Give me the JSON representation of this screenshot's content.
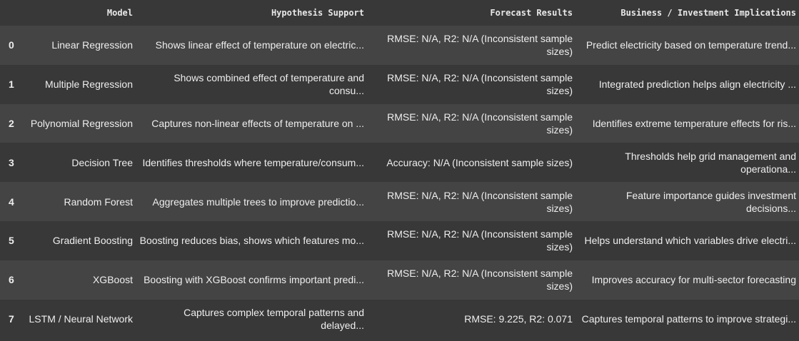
{
  "table": {
    "columns": [
      "",
      "Model",
      "Hypothesis Support",
      "Forecast Results",
      "Business / Investment Implications"
    ],
    "rows": [
      {
        "index": "0",
        "model": "Linear Regression",
        "hypothesis": "Shows linear effect of temperature on electric...",
        "forecast": "RMSE: N/A, R2: N/A (Inconsistent sample sizes)",
        "business": "Predict electricity based on temperature trend..."
      },
      {
        "index": "1",
        "model": "Multiple Regression",
        "hypothesis": "Shows combined effect of temperature and consu...",
        "forecast": "RMSE: N/A, R2: N/A (Inconsistent sample sizes)",
        "business": "Integrated prediction helps align electricity ..."
      },
      {
        "index": "2",
        "model": "Polynomial Regression",
        "hypothesis": "Captures non-linear effects of temperature on ...",
        "forecast": "RMSE: N/A, R2: N/A (Inconsistent sample sizes)",
        "business": "Identifies extreme temperature effects for ris..."
      },
      {
        "index": "3",
        "model": "Decision Tree",
        "hypothesis": "Identifies thresholds where temperature/consum...",
        "forecast": "Accuracy: N/A (Inconsistent sample sizes)",
        "business": "Thresholds help grid management and operationa..."
      },
      {
        "index": "4",
        "model": "Random Forest",
        "hypothesis": "Aggregates multiple trees to improve predictio...",
        "forecast": "RMSE: N/A, R2: N/A (Inconsistent sample sizes)",
        "business": "Feature importance guides investment decisions..."
      },
      {
        "index": "5",
        "model": "Gradient Boosting",
        "hypothesis": "Boosting reduces bias, shows which features mo...",
        "forecast": "RMSE: N/A, R2: N/A (Inconsistent sample sizes)",
        "business": "Helps understand which variables drive electri..."
      },
      {
        "index": "6",
        "model": "XGBoost",
        "hypothesis": "Boosting with XGBoost confirms important predi...",
        "forecast": "RMSE: N/A, R2: N/A (Inconsistent sample sizes)",
        "business": "Improves accuracy for multi-sector forecasting"
      },
      {
        "index": "7",
        "model": "LSTM / Neural Network",
        "hypothesis": "Captures complex temporal patterns and delayed...",
        "forecast": "RMSE: 9.225, R2: 0.071",
        "business": "Captures temporal patterns to improve strategi..."
      }
    ]
  }
}
